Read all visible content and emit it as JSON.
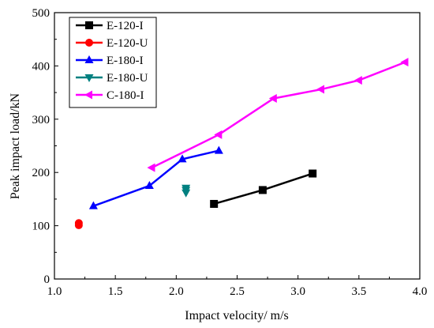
{
  "chart_data": {
    "type": "line",
    "xlabel": "Impact velocity/ m/s",
    "ylabel": "Peak impact load/kN",
    "xlim": [
      1.0,
      4.0
    ],
    "ylim": [
      0,
      500
    ],
    "xticks": [
      "1.0",
      "1.5",
      "2.0",
      "2.5",
      "3.0",
      "3.5",
      "4.0"
    ],
    "yticks": [
      "0",
      "100",
      "200",
      "300",
      "400",
      "500"
    ],
    "grid": false,
    "legend_position": "top-left",
    "series": [
      {
        "name": "E-120-I",
        "color": "#000000",
        "marker": "square",
        "connected": true,
        "points": [
          [
            2.31,
            141
          ],
          [
            2.71,
            167
          ],
          [
            3.12,
            198
          ]
        ]
      },
      {
        "name": "E-120-U",
        "color": "#ff0000",
        "marker": "circle",
        "connected": false,
        "points": [
          [
            1.2,
            101
          ],
          [
            1.2,
            105
          ]
        ]
      },
      {
        "name": "E-180-I",
        "color": "#0000ff",
        "marker": "triangle-up",
        "connected": true,
        "points": [
          [
            1.32,
            137
          ],
          [
            1.78,
            175
          ],
          [
            2.05,
            225
          ],
          [
            2.35,
            241
          ]
        ]
      },
      {
        "name": "E-180-U",
        "color": "#008080",
        "marker": "triangle-down",
        "connected": false,
        "points": [
          [
            2.08,
            162
          ],
          [
            2.08,
            167
          ],
          [
            2.08,
            171
          ]
        ]
      },
      {
        "name": "C-180-I",
        "color": "#ff00ff",
        "marker": "triangle-left",
        "connected": true,
        "points": [
          [
            1.8,
            209
          ],
          [
            2.35,
            271
          ],
          [
            2.8,
            339
          ],
          [
            3.19,
            356
          ],
          [
            3.5,
            373
          ],
          [
            3.88,
            407
          ]
        ]
      }
    ]
  }
}
